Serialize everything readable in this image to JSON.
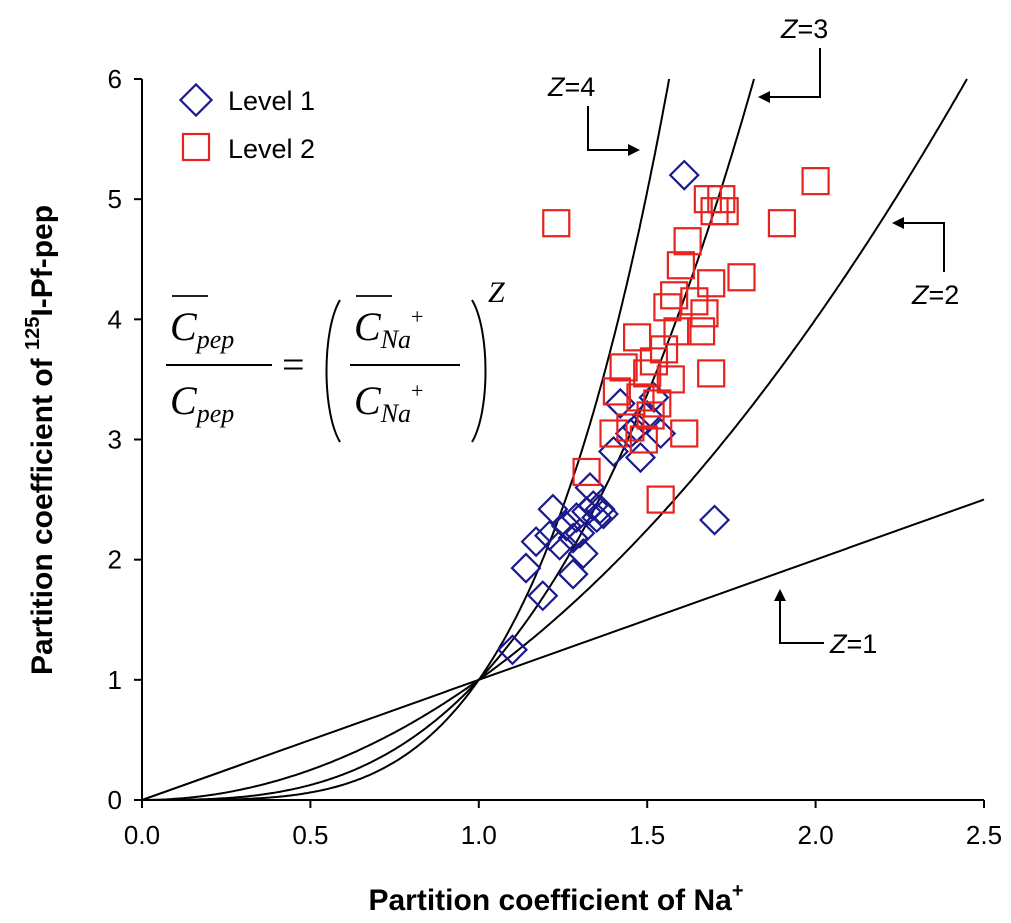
{
  "chart_data": {
    "type": "scatter",
    "title": "",
    "xlabel": "Partition coefficient of Na",
    "xlabel_sup": "+",
    "ylabel_pre": "Partition coefficient of ",
    "ylabel_sup": "125",
    "ylabel_post": "I-Pf-pep",
    "xlim": [
      0,
      2.5
    ],
    "ylim": [
      0,
      6
    ],
    "x_ticks": [
      "0.0",
      "0.5",
      "1.0",
      "1.5",
      "2.0",
      "2.5"
    ],
    "y_ticks": [
      "0",
      "1",
      "2",
      "3",
      "4",
      "5",
      "6"
    ],
    "legend_position": "top-left",
    "series": [
      {
        "name": "Level 1",
        "marker": "diamond",
        "color": "#1a1a8c",
        "points": [
          [
            1.1,
            1.25
          ],
          [
            1.14,
            1.93
          ],
          [
            1.17,
            2.15
          ],
          [
            1.19,
            1.7
          ],
          [
            1.21,
            2.2
          ],
          [
            1.22,
            2.42
          ],
          [
            1.24,
            2.12
          ],
          [
            1.26,
            2.28
          ],
          [
            1.28,
            2.18
          ],
          [
            1.28,
            1.88
          ],
          [
            1.29,
            2.35
          ],
          [
            1.3,
            2.22
          ],
          [
            1.31,
            2.05
          ],
          [
            1.32,
            2.4
          ],
          [
            1.33,
            2.6
          ],
          [
            1.34,
            2.45
          ],
          [
            1.35,
            2.35
          ],
          [
            1.36,
            2.42
          ],
          [
            1.37,
            2.38
          ],
          [
            1.4,
            2.9
          ],
          [
            1.42,
            3.3
          ],
          [
            1.45,
            3.05
          ],
          [
            1.47,
            3.1
          ],
          [
            1.48,
            2.85
          ],
          [
            1.5,
            3.2
          ],
          [
            1.52,
            3.35
          ],
          [
            1.54,
            3.05
          ],
          [
            1.61,
            5.2
          ],
          [
            1.7,
            2.33
          ]
        ]
      },
      {
        "name": "Level 2",
        "marker": "square",
        "color": "#e8231f",
        "points": [
          [
            1.23,
            4.8
          ],
          [
            1.32,
            2.73
          ],
          [
            1.4,
            3.05
          ],
          [
            1.41,
            3.4
          ],
          [
            1.43,
            3.6
          ],
          [
            1.45,
            3.1
          ],
          [
            1.47,
            3.85
          ],
          [
            1.48,
            3.35
          ],
          [
            1.49,
            3.0
          ],
          [
            1.5,
            3.55
          ],
          [
            1.51,
            3.2
          ],
          [
            1.52,
            3.65
          ],
          [
            1.53,
            3.3
          ],
          [
            1.54,
            2.5
          ],
          [
            1.55,
            3.75
          ],
          [
            1.56,
            4.1
          ],
          [
            1.57,
            3.5
          ],
          [
            1.58,
            4.2
          ],
          [
            1.59,
            3.9
          ],
          [
            1.6,
            4.45
          ],
          [
            1.61,
            3.05
          ],
          [
            1.62,
            4.65
          ],
          [
            1.64,
            4.15
          ],
          [
            1.66,
            3.9
          ],
          [
            1.67,
            4.05
          ],
          [
            1.68,
            5.0
          ],
          [
            1.69,
            4.3
          ],
          [
            1.69,
            3.55
          ],
          [
            1.7,
            4.9
          ],
          [
            1.72,
            5.0
          ],
          [
            1.73,
            4.9
          ],
          [
            1.78,
            4.35
          ],
          [
            1.9,
            4.8
          ],
          [
            2.0,
            5.15
          ]
        ]
      }
    ],
    "curves": [
      {
        "z": 1,
        "label": "Z=1"
      },
      {
        "z": 2,
        "label": "Z=2"
      },
      {
        "z": 3,
        "label": "Z=3"
      },
      {
        "z": 4,
        "label": "Z=4"
      }
    ],
    "z_var": "Z",
    "z_eq": "=",
    "equation": {
      "lhs_num": "C",
      "lhs_num_sub": "pep",
      "lhs_den": "C",
      "lhs_den_sub": "pep",
      "equals": "=",
      "rhs_num": "C",
      "rhs_num_sub": "Na",
      "rhs_num_sup": "+",
      "rhs_den": "C",
      "rhs_den_sub": "Na",
      "rhs_den_sup": "+",
      "exponent": "Z"
    }
  }
}
